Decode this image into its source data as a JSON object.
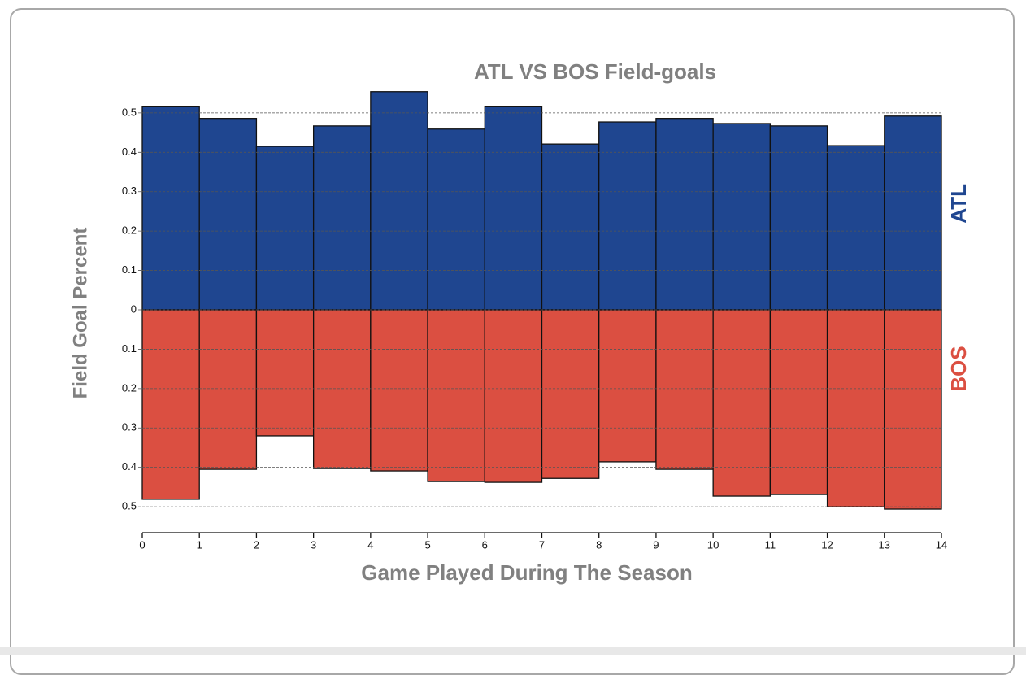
{
  "chart_data": {
    "type": "mirrored_histogram",
    "title": "ATL VS BOS Field-goals",
    "x_label": "Game Played During The Season",
    "y_label": "Field Goal Percent",
    "bins": [
      0,
      1,
      2,
      3,
      4,
      5,
      6,
      7,
      8,
      9,
      10,
      11,
      12,
      13,
      14
    ],
    "series": [
      {
        "name": "ATL",
        "color": "#1f4690",
        "direction": "up",
        "values": [
          0.517,
          0.486,
          0.415,
          0.467,
          0.554,
          0.459,
          0.517,
          0.421,
          0.477,
          0.486,
          0.473,
          0.467,
          0.417,
          0.492
        ]
      },
      {
        "name": "BOS",
        "color": "#db4f41",
        "direction": "down",
        "values": [
          0.481,
          0.405,
          0.32,
          0.403,
          0.409,
          0.436,
          0.438,
          0.428,
          0.386,
          0.405,
          0.473,
          0.469,
          0.5,
          0.506
        ]
      }
    ],
    "xlim": [
      0,
      14
    ],
    "xticks": [
      0,
      1,
      2,
      3,
      4,
      5,
      6,
      7,
      8,
      9,
      10,
      11,
      12,
      13,
      14
    ],
    "ylim": [
      -0.57,
      0.57
    ],
    "yticks": [
      0.5,
      0.4,
      0.3,
      0.2,
      0.1,
      0,
      {
        "value": -0.1,
        "label": "0.1"
      },
      {
        "value": -0.2,
        "label": "0.2"
      },
      {
        "value": -0.3,
        "label": "0.3"
      },
      {
        "value": -0.4,
        "label": "0.4"
      },
      {
        "value": -0.5,
        "label": "0.5"
      }
    ],
    "grid": true
  }
}
